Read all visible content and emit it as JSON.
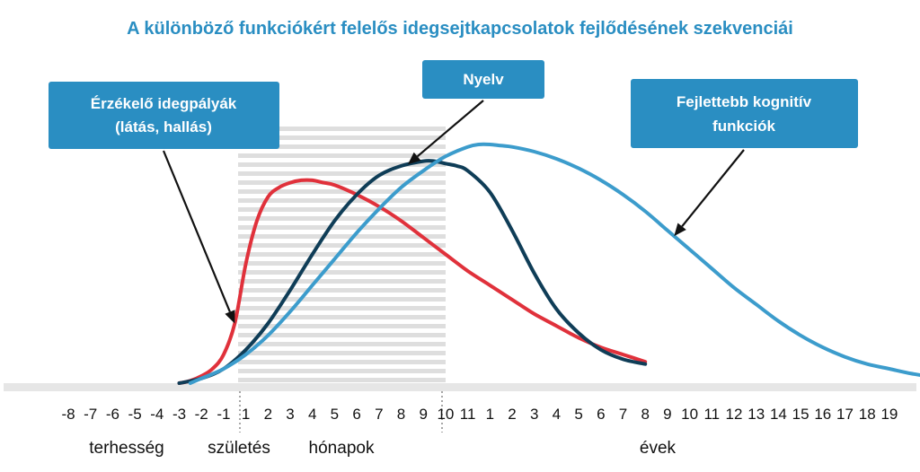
{
  "chart_data": {
    "type": "line",
    "title": "A különböző funkciókért felelős idegsejtkapcsolatok fejlődésének szekvenciái",
    "x_ticks": [
      {
        "label": "-8"
      },
      {
        "label": "-7"
      },
      {
        "label": "-6"
      },
      {
        "label": "-5"
      },
      {
        "label": "-4"
      },
      {
        "label": "-3"
      },
      {
        "label": "-2"
      },
      {
        "label": "-1"
      },
      {
        "label": "1"
      },
      {
        "label": "2"
      },
      {
        "label": "3"
      },
      {
        "label": "4"
      },
      {
        "label": "5"
      },
      {
        "label": "6"
      },
      {
        "label": "7"
      },
      {
        "label": "8"
      },
      {
        "label": "9"
      },
      {
        "label": "10"
      },
      {
        "label": "11"
      },
      {
        "label": "1"
      },
      {
        "label": "2"
      },
      {
        "label": "3"
      },
      {
        "label": "4"
      },
      {
        "label": "5"
      },
      {
        "label": "6"
      },
      {
        "label": "7"
      },
      {
        "label": "8"
      },
      {
        "label": "9"
      },
      {
        "label": "10"
      },
      {
        "label": "11"
      },
      {
        "label": "12"
      },
      {
        "label": "13"
      },
      {
        "label": "14"
      },
      {
        "label": "15"
      },
      {
        "label": "16"
      },
      {
        "label": "17"
      },
      {
        "label": "18"
      },
      {
        "label": "19"
      }
    ],
    "period_labels": [
      {
        "text": "terhesség"
      },
      {
        "text": "születés"
      },
      {
        "text": "hónapok"
      },
      {
        "text": "évek"
      }
    ],
    "ylim": [
      0,
      1
    ],
    "series": [
      {
        "name": "Érzékelő idegpályák (látás, hallás)",
        "color": "#e0313b",
        "x": [
          -3,
          -2.5,
          -2,
          -1.5,
          -1,
          -0.5,
          0,
          0.5,
          1,
          1.5,
          2,
          2.5,
          3,
          3.5,
          4,
          5,
          6,
          7,
          8,
          9,
          10,
          11,
          12,
          13,
          14,
          15,
          16,
          17,
          18
        ],
        "y": [
          0,
          0.01,
          0.03,
          0.06,
          0.12,
          0.25,
          0.5,
          0.68,
          0.78,
          0.82,
          0.84,
          0.85,
          0.85,
          0.84,
          0.83,
          0.79,
          0.74,
          0.68,
          0.61,
          0.54,
          0.47,
          0.41,
          0.35,
          0.29,
          0.24,
          0.19,
          0.15,
          0.12,
          0.09
        ]
      },
      {
        "name": "Nyelv",
        "color": "#0f3d57",
        "x": [
          -3,
          -2,
          -1,
          0,
          1,
          2,
          3,
          4,
          5,
          6,
          7,
          8,
          8.5,
          9,
          9.5,
          10,
          11,
          12,
          13,
          14,
          15,
          16,
          17,
          18
        ],
        "y": [
          0,
          0.02,
          0.06,
          0.14,
          0.25,
          0.39,
          0.54,
          0.68,
          0.79,
          0.87,
          0.91,
          0.93,
          0.93,
          0.92,
          0.91,
          0.89,
          0.8,
          0.64,
          0.46,
          0.31,
          0.21,
          0.14,
          0.1,
          0.08
        ]
      },
      {
        "name": "Fejlettebb kognitív funkciók",
        "color": "#3c9ccc",
        "x": [
          -2.5,
          -2,
          -1,
          0,
          1,
          2,
          3,
          4,
          5,
          6,
          7,
          8,
          9,
          10,
          10.5,
          11,
          11.5,
          12,
          13,
          14,
          15,
          16,
          17,
          18,
          19,
          20,
          21,
          22,
          23,
          24,
          25,
          26,
          27,
          28,
          29,
          30,
          31,
          32,
          33,
          34
        ],
        "y": [
          0,
          0.02,
          0.06,
          0.12,
          0.2,
          0.3,
          0.41,
          0.52,
          0.63,
          0.73,
          0.82,
          0.89,
          0.95,
          0.99,
          1.0,
          1.0,
          0.995,
          0.99,
          0.97,
          0.94,
          0.9,
          0.85,
          0.79,
          0.72,
          0.64,
          0.56,
          0.48,
          0.4,
          0.33,
          0.26,
          0.2,
          0.15,
          0.11,
          0.08,
          0.06,
          0.04,
          0.025,
          0.015,
          0.01,
          0.005
        ]
      }
    ],
    "annotations": [
      {
        "lines": [
          "Érzékelő idegpályák",
          "(látás, hallás)"
        ],
        "target_series": 0
      },
      {
        "lines": [
          "Nyelv"
        ],
        "target_series": 1
      },
      {
        "lines": [
          "Fejlettebb kognitív",
          "funkciók"
        ],
        "target_series": 2
      }
    ]
  },
  "colors": {
    "title": "#2a8ec2",
    "callout_bg": "#2a8ec2",
    "axis": "#e6e6e6",
    "stripes": "#dedede",
    "arrow": "#111111",
    "divider": "#8a8a8a"
  }
}
